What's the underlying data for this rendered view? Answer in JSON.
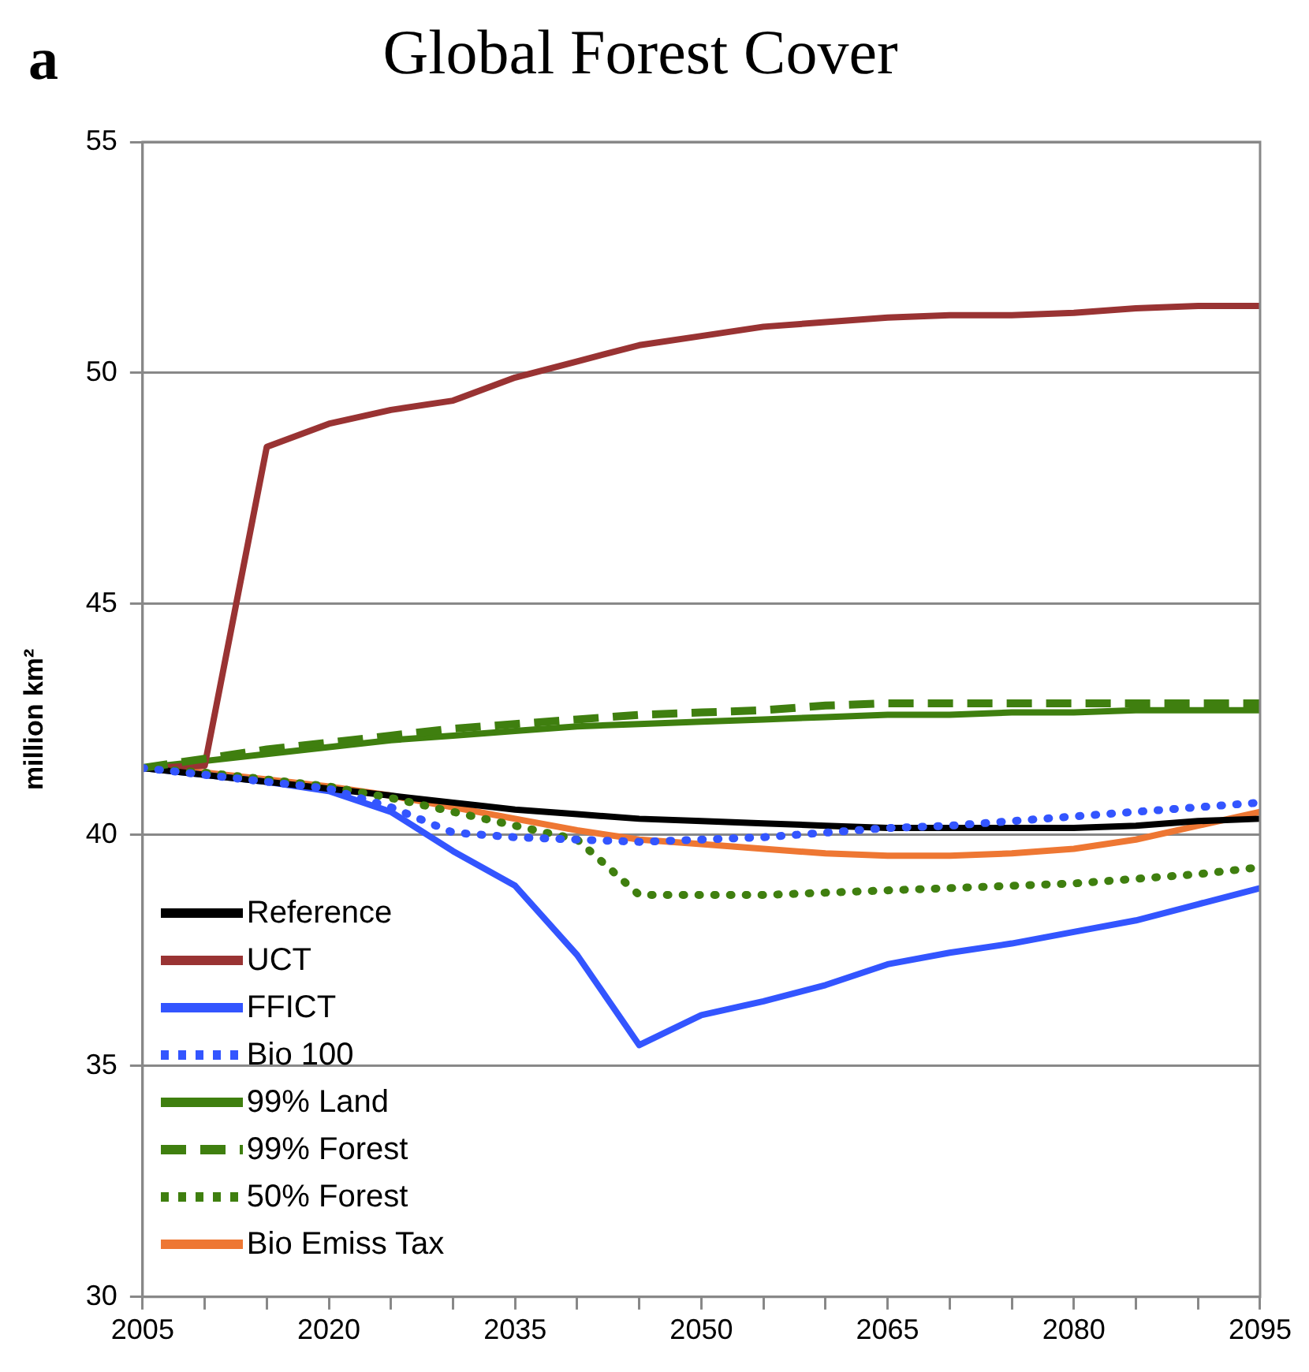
{
  "chart_data": {
    "type": "line",
    "title": "Global Forest Cover",
    "ylabel": "million km²",
    "annotations": [
      "a"
    ],
    "x": [
      2005,
      2010,
      2015,
      2020,
      2025,
      2030,
      2035,
      2040,
      2045,
      2050,
      2055,
      2060,
      2065,
      2070,
      2075,
      2080,
      2085,
      2090,
      2095
    ],
    "xlim": [
      2005,
      2095
    ],
    "xticks": [
      2005,
      {
        "value": 2010,
        "label": null
      },
      {
        "value": 2015,
        "label": null
      },
      2020,
      {
        "value": 2025,
        "label": null
      },
      {
        "value": 2030,
        "label": null
      },
      2035,
      {
        "value": 2040,
        "label": null
      },
      {
        "value": 2045,
        "label": null
      },
      2050,
      {
        "value": 2055,
        "label": null
      },
      {
        "value": 2060,
        "label": null
      },
      2065,
      {
        "value": 2070,
        "label": null
      },
      {
        "value": 2075,
        "label": null
      },
      2080,
      {
        "value": 2085,
        "label": null
      },
      {
        "value": 2090,
        "label": null
      },
      2095
    ],
    "ylim": [
      30,
      55
    ],
    "yticks": [
      30,
      35,
      40,
      45,
      50,
      55
    ],
    "grid": "y",
    "legend": "bottom left",
    "marker": "none",
    "series": [
      {
        "name": "Reference",
        "color": "#000000",
        "line_style": "solid",
        "values": [
          41.45,
          41.3,
          41.15,
          41.0,
          40.85,
          40.7,
          40.55,
          40.45,
          40.35,
          40.3,
          40.25,
          40.2,
          40.15,
          40.15,
          40.15,
          40.15,
          40.2,
          40.3,
          40.35
        ]
      },
      {
        "name": "UCT",
        "color": "#993333",
        "line_style": "solid",
        "values": [
          41.45,
          41.5,
          48.4,
          48.9,
          49.2,
          49.4,
          49.9,
          50.25,
          50.6,
          50.8,
          51.0,
          51.1,
          51.2,
          51.25,
          51.25,
          51.3,
          51.4,
          51.45,
          51.45
        ]
      },
      {
        "name": "FFICT",
        "color": "#3355ff",
        "line_style": "solid",
        "values": [
          41.45,
          41.3,
          41.15,
          40.95,
          40.5,
          39.65,
          38.9,
          37.4,
          35.45,
          36.1,
          36.4,
          36.75,
          37.2,
          37.45,
          37.65,
          37.9,
          38.15,
          38.5,
          38.85
        ]
      },
      {
        "name": "Bio 100",
        "color": "#3355ff",
        "line_style": "dotted",
        "values": [
          41.45,
          41.3,
          41.15,
          41.0,
          40.6,
          40.05,
          39.95,
          39.9,
          39.85,
          39.9,
          39.95,
          40.05,
          40.15,
          40.2,
          40.3,
          40.4,
          40.5,
          40.6,
          40.7
        ]
      },
      {
        "name": "99% Land",
        "color": "#3f7f0f",
        "line_style": "solid",
        "values": [
          41.45,
          41.6,
          41.75,
          41.9,
          42.05,
          42.15,
          42.25,
          42.35,
          42.4,
          42.45,
          42.5,
          42.55,
          42.6,
          42.6,
          42.65,
          42.65,
          42.7,
          42.7,
          42.7
        ]
      },
      {
        "name": "99% Forest",
        "color": "#3f7f0f",
        "line_style": "dashed",
        "values": [
          41.45,
          41.65,
          41.85,
          42.0,
          42.15,
          42.3,
          42.4,
          42.5,
          42.6,
          42.65,
          42.7,
          42.8,
          42.85,
          42.85,
          42.85,
          42.85,
          42.85,
          42.85,
          42.85
        ]
      },
      {
        "name": "50% Forest",
        "color": "#3f7f0f",
        "line_style": "dotted",
        "values": [
          41.45,
          41.35,
          41.2,
          41.05,
          40.8,
          40.5,
          40.2,
          39.9,
          38.7,
          38.7,
          38.7,
          38.75,
          38.8,
          38.85,
          38.9,
          38.95,
          39.05,
          39.15,
          39.3
        ]
      },
      {
        "name": "Bio Emiss Tax",
        "color": "#ee7733",
        "line_style": "solid",
        "values": [
          41.45,
          41.35,
          41.2,
          41.05,
          40.85,
          40.6,
          40.35,
          40.1,
          39.9,
          39.8,
          39.7,
          39.6,
          39.55,
          39.55,
          39.6,
          39.7,
          39.9,
          40.2,
          40.5
        ]
      }
    ]
  }
}
